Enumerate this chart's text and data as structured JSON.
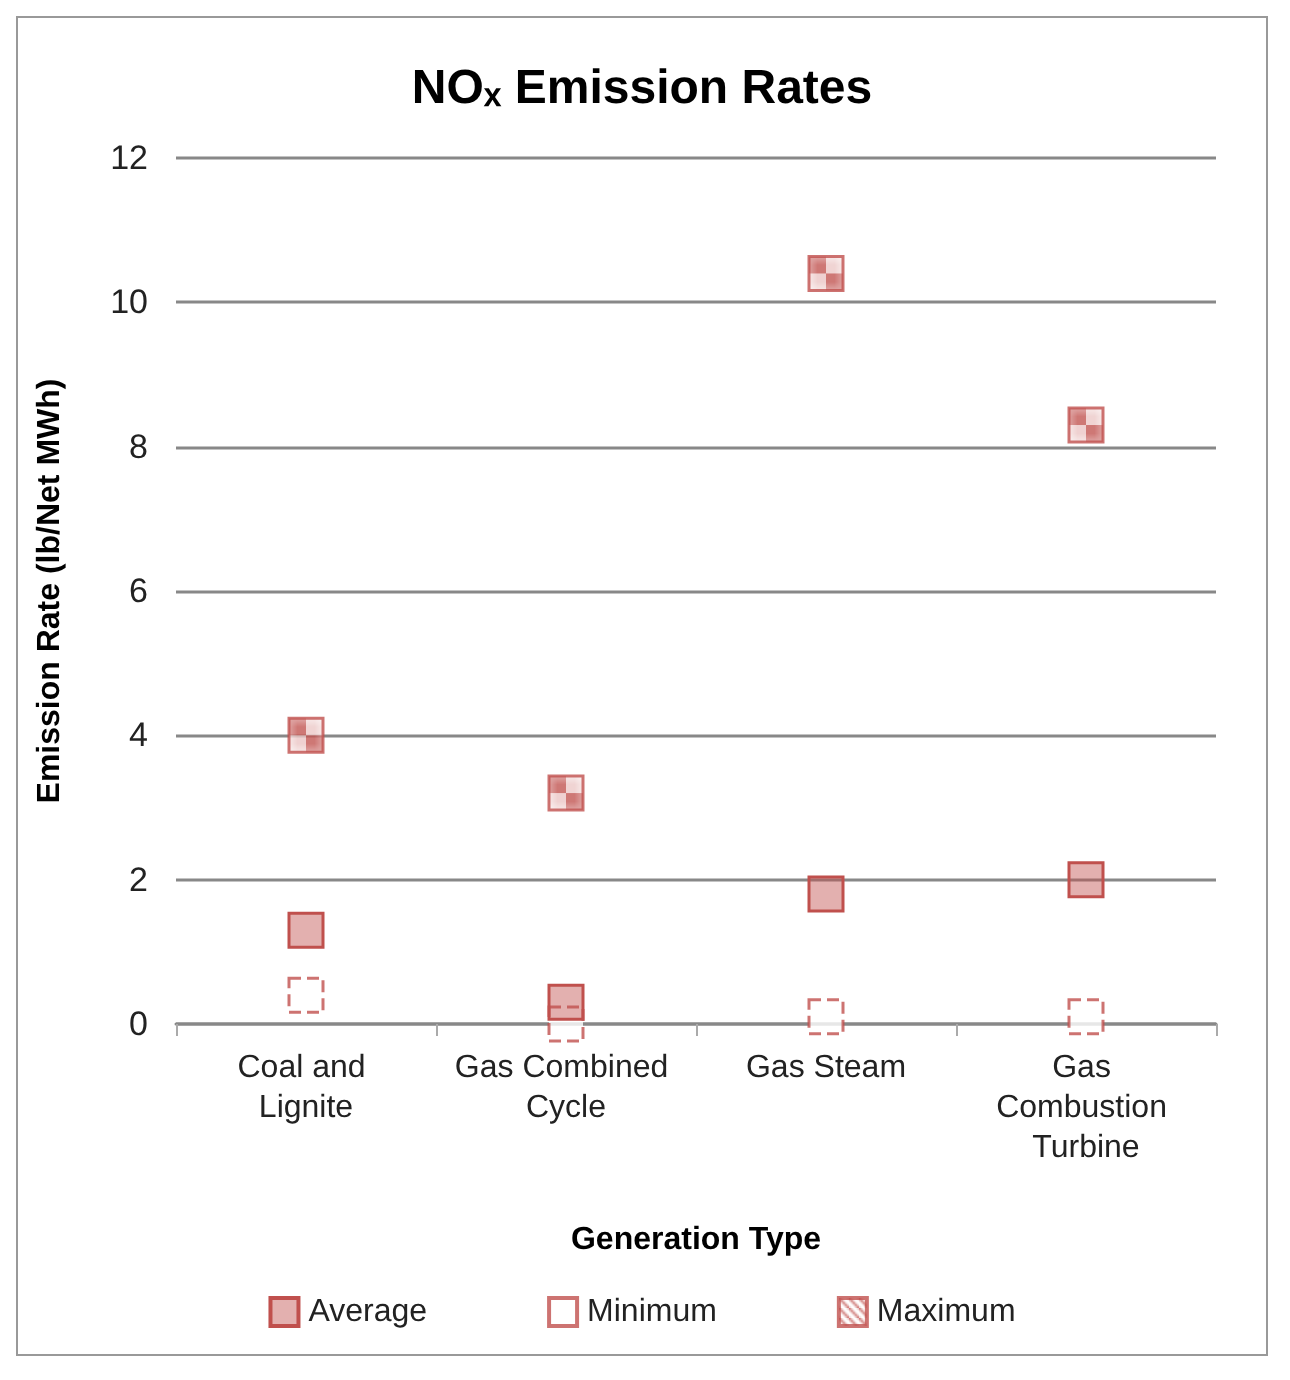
{
  "chart_data": {
    "type": "scatter",
    "title": "NOₓ Emission Rates",
    "xlabel": "Generation Type",
    "ylabel": "Emission Rate (lb/Net MWh)",
    "categories": [
      "Coal and Lignite",
      "Gas Combined Cycle",
      "Gas Steam",
      "Gas Combustion Turbine"
    ],
    "series": [
      {
        "name": "Average",
        "color": "#c0504d",
        "values": [
          1.3,
          0.3,
          1.8,
          2.0
        ]
      },
      {
        "name": "Minimum",
        "color": "#c0504d",
        "line_style": "dashed",
        "values": [
          0.4,
          0.0,
          0.1,
          0.1
        ]
      },
      {
        "name": "Maximum",
        "color": "#c0504d",
        "values": [
          4.0,
          3.2,
          10.4,
          8.3
        ]
      }
    ],
    "ylim": [
      0,
      12
    ],
    "yticks": [
      0,
      2,
      4,
      6,
      8,
      10,
      12
    ],
    "grid": "y",
    "legend": "bottom",
    "marker": "square"
  }
}
